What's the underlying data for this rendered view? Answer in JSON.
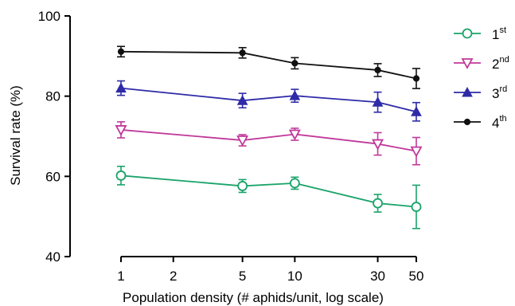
{
  "chart_data": {
    "type": "line",
    "xlabel": "Population density (# aphids/unit, log scale)",
    "ylabel": "Survival rate (%)",
    "x_scale": "log",
    "xlim": [
      1,
      50
    ],
    "ylim": [
      40,
      100
    ],
    "x_ticks": [
      1,
      2,
      5,
      10,
      30,
      50
    ],
    "x_tick_labels": [
      "1",
      "2",
      "5",
      "10",
      "30",
      "50"
    ],
    "y_ticks": [
      40,
      60,
      80,
      100
    ],
    "y_tick_labels": [
      "40",
      "60",
      "80",
      "100"
    ],
    "legend_position": "right",
    "x": [
      1,
      5,
      10,
      30,
      50
    ],
    "series": [
      {
        "name": "1",
        "sup": "st",
        "color": "#1aa36a",
        "marker": "open-circle",
        "values": [
          60.2,
          57.6,
          58.3,
          53.3,
          52.4
        ],
        "errors": [
          2.3,
          1.6,
          1.5,
          2.2,
          5.4
        ]
      },
      {
        "name": "2",
        "sup": "nd",
        "color": "#c0399a",
        "marker": "open-triangle-down",
        "values": [
          71.6,
          69.0,
          70.5,
          68.1,
          66.3
        ],
        "errors": [
          2.0,
          1.4,
          1.5,
          2.8,
          3.4
        ]
      },
      {
        "name": "3",
        "sup": "rd",
        "color": "#2e2aa8",
        "marker": "filled-triangle-up",
        "values": [
          82.0,
          78.9,
          80.1,
          78.5,
          76.1
        ],
        "errors": [
          1.8,
          1.8,
          1.6,
          2.5,
          2.3
        ]
      },
      {
        "name": "4",
        "sup": "th",
        "color": "#111111",
        "marker": "filled-circle",
        "values": [
          91.1,
          90.8,
          88.2,
          86.5,
          84.4
        ],
        "errors": [
          1.3,
          1.3,
          1.4,
          1.6,
          2.5
        ]
      }
    ]
  }
}
